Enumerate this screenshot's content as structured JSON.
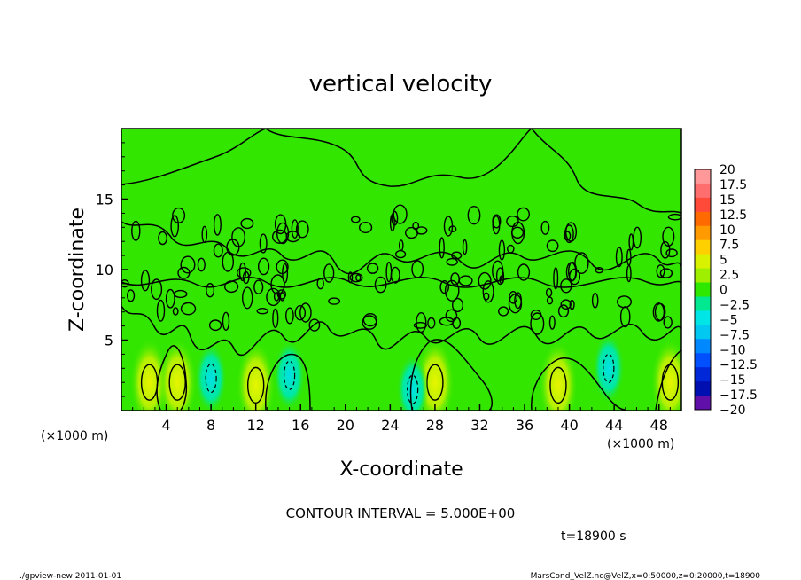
{
  "chart_data": {
    "type": "heatmap",
    "title": "vertical velocity",
    "xlabel": "X-coordinate",
    "ylabel": "Z-coordinate",
    "x_unit_left": "(×1000 m)",
    "x_unit_right": "(×1000 m)",
    "xlim": [
      0,
      50
    ],
    "ylim": [
      0,
      20
    ],
    "x_ticks": [
      "4",
      "8",
      "12",
      "16",
      "20",
      "24",
      "28",
      "32",
      "36",
      "40",
      "44",
      "48"
    ],
    "y_ticks": [
      "5",
      "10",
      "15"
    ],
    "colorbar": {
      "labels": [
        "20",
        "17.5",
        "15",
        "12.5",
        "10",
        "7.5",
        "5",
        "2.5",
        "0",
        "−2.5",
        "−5",
        "−7.5",
        "−10",
        "−12.5",
        "−15",
        "−17.5",
        "−20"
      ],
      "colors": [
        "#ff9999",
        "#ff6e6e",
        "#ff4a3a",
        "#ff6a00",
        "#ff9a00",
        "#ffd000",
        "#d8f200",
        "#9ef000",
        "#2ee800",
        "#00e890",
        "#00e6e6",
        "#00c8f0",
        "#0088ff",
        "#0050ff",
        "#0028d8",
        "#0010b0",
        "#6010a8"
      ]
    },
    "features": {
      "updrafts": [
        {
          "x": 2.5,
          "z": 2
        },
        {
          "x": 5,
          "z": 2
        },
        {
          "x": 12,
          "z": 1.8
        },
        {
          "x": 28,
          "z": 2
        },
        {
          "x": 39,
          "z": 1.8
        },
        {
          "x": 49,
          "z": 2
        }
      ],
      "downdrafts": [
        {
          "x": 8,
          "z": 2.3
        },
        {
          "x": 15,
          "z": 2.5
        },
        {
          "x": 26,
          "z": 1.5
        },
        {
          "x": 43.5,
          "z": 3
        }
      ]
    },
    "grid": false
  },
  "contour_interval_text": "CONTOUR INTERVAL = 5.000E+00",
  "time_text": "t=18900 s",
  "footer_left": "./gpview-new  2011-01-01",
  "footer_right": "MarsCond_VelZ.nc@VelZ,x=0:50000,z=0:20000,t=18900"
}
